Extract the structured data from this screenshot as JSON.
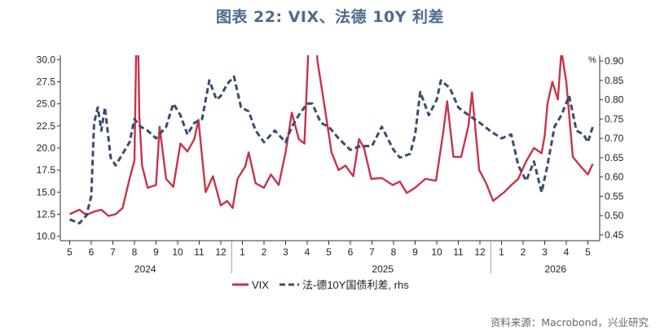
{
  "title": "图表 22: VIX、法德 10Y 利差",
  "source": "资料来源：Macrobond，兴业研究",
  "colors": {
    "vix": "#c8334a",
    "spread": "#3a4c6e",
    "title": "#4d6a8e",
    "axis": "#333333"
  },
  "chart_data": {
    "type": "line",
    "x_month_labels": [
      "5",
      "6",
      "7",
      "8",
      "9",
      "10",
      "11",
      "12",
      "1",
      "2",
      "3",
      "4",
      "5",
      "6",
      "7",
      "8",
      "9",
      "10",
      "11",
      "12",
      "1",
      "2",
      "3",
      "4",
      "5"
    ],
    "x_year_labels": [
      "2024",
      "2025",
      "2026"
    ],
    "left_axis": {
      "ticks": [
        "10.0",
        "12.5",
        "15.0",
        "17.5",
        "20.0",
        "22.5",
        "25.0",
        "27.5",
        "30.0"
      ],
      "ylim": [
        9.5,
        30.5
      ]
    },
    "right_axis": {
      "ticks": [
        "0.45",
        "0.50",
        "0.55",
        "0.60",
        "0.65",
        "0.70",
        "0.75",
        "0.80",
        "0.85",
        "0.90"
      ],
      "unit": "%",
      "ylim": [
        0.435,
        0.915
      ]
    },
    "legend": {
      "vix": "VIX",
      "spread": "法-德10Y国债利差, rhs"
    },
    "series": [
      {
        "name": "VIX",
        "axis": "left",
        "style": "solid",
        "x": [
          "2024-05-01",
          "2024-05-15",
          "2024-05-25",
          "2024-06-05",
          "2024-06-15",
          "2024-06-25",
          "2024-07-05",
          "2024-07-15",
          "2024-07-25",
          "2024-08-01",
          "2024-08-05",
          "2024-08-08",
          "2024-08-12",
          "2024-08-20",
          "2024-09-01",
          "2024-09-06",
          "2024-09-15",
          "2024-09-25",
          "2024-10-05",
          "2024-10-15",
          "2024-10-25",
          "2024-10-31",
          "2024-11-05",
          "2024-11-10",
          "2024-11-20",
          "2024-12-01",
          "2024-12-10",
          "2024-12-18",
          "2024-12-25",
          "2025-01-05",
          "2025-01-10",
          "2025-01-20",
          "2025-02-01",
          "2025-02-10",
          "2025-02-20",
          "2025-03-01",
          "2025-03-10",
          "2025-03-20",
          "2025-03-28",
          "2025-04-04",
          "2025-04-08",
          "2025-04-15",
          "2025-04-25",
          "2025-05-05",
          "2025-05-15",
          "2025-05-25",
          "2025-06-05",
          "2025-06-13",
          "2025-06-20",
          "2025-06-30",
          "2025-07-15",
          "2025-07-31",
          "2025-08-10",
          "2025-08-20",
          "2025-09-01",
          "2025-09-15",
          "2025-09-30",
          "2025-10-10",
          "2025-10-16",
          "2025-10-25",
          "2025-11-05",
          "2025-11-15",
          "2025-11-20",
          "2025-11-30",
          "2025-12-10",
          "2025-12-20",
          "2026-01-05",
          "2026-01-15",
          "2026-01-25",
          "2026-02-05",
          "2026-02-15",
          "2026-02-25",
          "2026-03-01",
          "2026-03-05",
          "2026-03-12",
          "2026-03-20",
          "2026-03-25",
          "2026-04-01",
          "2026-04-10",
          "2026-04-20",
          "2026-05-01",
          "2026-05-08"
        ],
        "values": [
          12.5,
          13.0,
          12.4,
          12.8,
          13.0,
          12.3,
          12.5,
          13.2,
          16.5,
          18.6,
          38.6,
          23.5,
          18.0,
          15.5,
          15.8,
          22.4,
          16.5,
          15.6,
          20.5,
          19.6,
          21.0,
          23.2,
          19.0,
          15.0,
          16.8,
          13.5,
          14.0,
          13.2,
          16.5,
          17.9,
          19.5,
          16.0,
          15.5,
          17.0,
          15.8,
          19.5,
          24.0,
          21.0,
          20.5,
          33.6,
          50.0,
          30.0,
          24.8,
          19.5,
          17.5,
          18.0,
          16.8,
          21.0,
          20.0,
          16.5,
          16.6,
          15.8,
          16.2,
          14.9,
          15.5,
          16.5,
          16.3,
          21.6,
          25.3,
          19.0,
          19.0,
          22.5,
          26.3,
          17.5,
          16.0,
          14.0,
          15.0,
          15.8,
          16.5,
          18.5,
          20.0,
          19.4,
          21.4,
          25.0,
          27.5,
          25.5,
          31.0,
          27.5,
          19.0,
          18.0,
          17.0,
          18.2
        ]
      },
      {
        "name": "法-德10Y国债利差, rhs",
        "axis": "right",
        "style": "dashed",
        "x": [
          "2024-05-01",
          "2024-05-15",
          "2024-05-25",
          "2024-06-01",
          "2024-06-05",
          "2024-06-10",
          "2024-06-15",
          "2024-06-20",
          "2024-06-28",
          "2024-07-05",
          "2024-07-15",
          "2024-07-25",
          "2024-08-01",
          "2024-08-10",
          "2024-08-20",
          "2024-09-01",
          "2024-09-15",
          "2024-09-25",
          "2024-10-05",
          "2024-10-15",
          "2024-10-25",
          "2024-11-05",
          "2024-11-15",
          "2024-11-25",
          "2024-12-01",
          "2024-12-10",
          "2024-12-20",
          "2024-12-30",
          "2025-01-10",
          "2025-01-20",
          "2025-02-01",
          "2025-02-15",
          "2025-03-01",
          "2025-03-10",
          "2025-03-20",
          "2025-04-01",
          "2025-04-08",
          "2025-04-20",
          "2025-05-01",
          "2025-05-15",
          "2025-06-01",
          "2025-06-15",
          "2025-07-01",
          "2025-07-15",
          "2025-08-01",
          "2025-08-10",
          "2025-08-25",
          "2025-09-01",
          "2025-09-08",
          "2025-09-20",
          "2025-10-01",
          "2025-10-07",
          "2025-10-20",
          "2025-11-01",
          "2025-11-15",
          "2025-12-01",
          "2025-12-15",
          "2026-01-01",
          "2026-01-15",
          "2026-01-25",
          "2026-02-05",
          "2026-02-15",
          "2026-02-25",
          "2026-03-05",
          "2026-03-15",
          "2026-03-25",
          "2026-04-05",
          "2026-04-15",
          "2026-04-25",
          "2026-05-01",
          "2026-05-08"
        ],
        "values": [
          0.49,
          0.48,
          0.5,
          0.55,
          0.74,
          0.78,
          0.72,
          0.78,
          0.65,
          0.63,
          0.66,
          0.69,
          0.75,
          0.73,
          0.72,
          0.7,
          0.73,
          0.79,
          0.76,
          0.71,
          0.74,
          0.75,
          0.85,
          0.8,
          0.81,
          0.84,
          0.86,
          0.78,
          0.77,
          0.72,
          0.69,
          0.72,
          0.69,
          0.73,
          0.76,
          0.79,
          0.79,
          0.74,
          0.73,
          0.7,
          0.67,
          0.68,
          0.68,
          0.73,
          0.67,
          0.65,
          0.66,
          0.71,
          0.82,
          0.76,
          0.8,
          0.85,
          0.83,
          0.78,
          0.76,
          0.74,
          0.72,
          0.7,
          0.71,
          0.63,
          0.59,
          0.64,
          0.56,
          0.63,
          0.73,
          0.76,
          0.81,
          0.72,
          0.71,
          0.69,
          0.73
        ]
      }
    ]
  }
}
